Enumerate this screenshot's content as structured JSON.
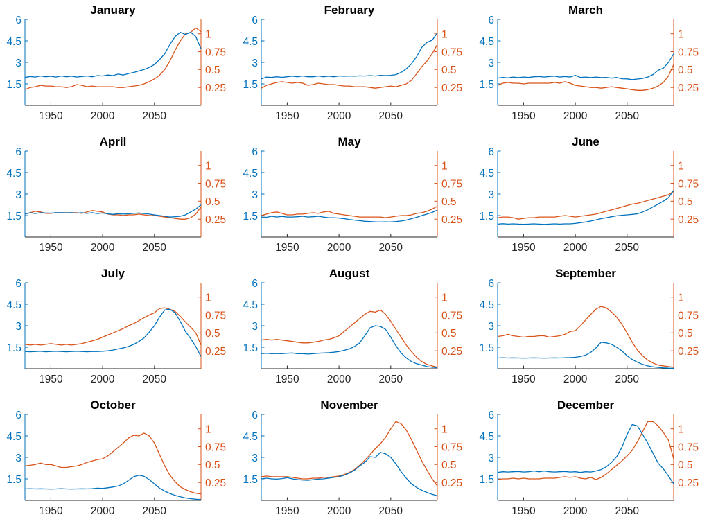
{
  "figure": {
    "background": "#ffffff",
    "grid_rows": 4,
    "grid_cols": 3
  },
  "colors": {
    "blue": "#0072BD",
    "orange": "#D95319",
    "axis_text": "#262626",
    "title_text": "#000000"
  },
  "chart_data": {
    "type": "line",
    "layout": "4x3 subplot grid, one subplot per month, two series per subplot (blue on left y-axis, orange on right y-axis)",
    "x": [
      1925,
      1930,
      1935,
      1940,
      1945,
      1950,
      1955,
      1960,
      1965,
      1970,
      1975,
      1980,
      1985,
      1990,
      1995,
      2000,
      2005,
      2010,
      2015,
      2020,
      2025,
      2030,
      2035,
      2040,
      2045,
      2050,
      2055,
      2060,
      2065,
      2070,
      2075,
      2080,
      2085,
      2090,
      2095
    ],
    "xlim": [
      1925,
      2095
    ],
    "x_ticks": [
      1950,
      2000,
      2050
    ],
    "left_axis": {
      "color": "#0072BD",
      "ticks": [
        1.5,
        3,
        4.5,
        6
      ],
      "lim": [
        0,
        6
      ]
    },
    "right_axis": {
      "color": "#D95319",
      "ticks": [
        0.25,
        0.5,
        0.75,
        1
      ],
      "lim": [
        0,
        1.2
      ]
    },
    "subplots": [
      {
        "title": "January",
        "left_values": [
          1.95,
          2.02,
          1.98,
          2.05,
          2.0,
          2.03,
          1.98,
          2.05,
          2.0,
          2.04,
          1.98,
          2.02,
          2.05,
          2.0,
          2.08,
          2.05,
          2.12,
          2.08,
          2.18,
          2.12,
          2.22,
          2.3,
          2.4,
          2.5,
          2.65,
          2.85,
          3.2,
          3.6,
          4.25,
          4.8,
          5.1,
          4.95,
          5.1,
          4.8,
          3.95
        ],
        "right_values": [
          0.22,
          0.25,
          0.26,
          0.28,
          0.27,
          0.27,
          0.26,
          0.26,
          0.25,
          0.26,
          0.29,
          0.28,
          0.26,
          0.27,
          0.26,
          0.26,
          0.26,
          0.26,
          0.25,
          0.25,
          0.26,
          0.27,
          0.28,
          0.3,
          0.33,
          0.37,
          0.42,
          0.5,
          0.62,
          0.77,
          0.9,
          1.0,
          1.02,
          1.08,
          1.03
        ]
      },
      {
        "title": "February",
        "left_values": [
          1.85,
          1.98,
          1.95,
          2.0,
          1.96,
          2.0,
          2.04,
          2.0,
          2.05,
          2.0,
          2.0,
          2.05,
          2.0,
          2.04,
          2.0,
          2.05,
          2.03,
          2.05,
          2.04,
          2.06,
          2.05,
          2.08,
          2.05,
          2.1,
          2.08,
          2.1,
          2.15,
          2.3,
          2.55,
          2.9,
          3.4,
          4.05,
          4.4,
          4.55,
          5.05
        ],
        "right_values": [
          0.24,
          0.28,
          0.3,
          0.32,
          0.33,
          0.32,
          0.31,
          0.32,
          0.31,
          0.28,
          0.29,
          0.31,
          0.3,
          0.29,
          0.29,
          0.28,
          0.27,
          0.27,
          0.26,
          0.26,
          0.26,
          0.25,
          0.24,
          0.25,
          0.26,
          0.27,
          0.26,
          0.28,
          0.3,
          0.35,
          0.44,
          0.54,
          0.62,
          0.72,
          0.85
        ]
      },
      {
        "title": "March",
        "left_values": [
          1.9,
          1.95,
          1.92,
          1.98,
          1.94,
          1.98,
          1.95,
          2.0,
          2.02,
          1.98,
          2.02,
          2.04,
          1.98,
          2.02,
          1.98,
          2.1,
          1.95,
          1.98,
          1.94,
          1.98,
          1.94,
          1.95,
          1.9,
          1.95,
          1.86,
          1.85,
          1.8,
          1.84,
          1.88,
          1.98,
          2.15,
          2.45,
          2.6,
          3.0,
          3.6
        ],
        "right_values": [
          0.28,
          0.31,
          0.32,
          0.31,
          0.31,
          0.3,
          0.31,
          0.31,
          0.31,
          0.31,
          0.31,
          0.32,
          0.31,
          0.33,
          0.31,
          0.28,
          0.27,
          0.26,
          0.25,
          0.25,
          0.24,
          0.25,
          0.26,
          0.25,
          0.24,
          0.23,
          0.22,
          0.21,
          0.21,
          0.22,
          0.24,
          0.27,
          0.32,
          0.41,
          0.57
        ]
      },
      {
        "title": "April",
        "left_values": [
          1.6,
          1.7,
          1.64,
          1.7,
          1.68,
          1.67,
          1.7,
          1.7,
          1.69,
          1.7,
          1.67,
          1.7,
          1.65,
          1.7,
          1.64,
          1.68,
          1.62,
          1.58,
          1.63,
          1.6,
          1.62,
          1.65,
          1.68,
          1.64,
          1.6,
          1.55,
          1.5,
          1.45,
          1.4,
          1.42,
          1.45,
          1.55,
          1.75,
          1.95,
          2.25
        ],
        "right_values": [
          0.32,
          0.34,
          0.36,
          0.35,
          0.33,
          0.33,
          0.34,
          0.34,
          0.34,
          0.34,
          0.34,
          0.33,
          0.35,
          0.37,
          0.36,
          0.35,
          0.32,
          0.31,
          0.31,
          0.3,
          0.31,
          0.31,
          0.32,
          0.31,
          0.3,
          0.3,
          0.29,
          0.28,
          0.27,
          0.26,
          0.25,
          0.25,
          0.27,
          0.32,
          0.42
        ]
      },
      {
        "title": "May",
        "left_values": [
          1.4,
          1.38,
          1.45,
          1.4,
          1.44,
          1.4,
          1.4,
          1.42,
          1.45,
          1.4,
          1.42,
          1.45,
          1.4,
          1.35,
          1.35,
          1.32,
          1.28,
          1.22,
          1.18,
          1.14,
          1.1,
          1.08,
          1.06,
          1.05,
          1.06,
          1.05,
          1.08,
          1.12,
          1.18,
          1.28,
          1.38,
          1.5,
          1.6,
          1.72,
          1.88
        ],
        "right_values": [
          0.3,
          0.32,
          0.34,
          0.35,
          0.33,
          0.31,
          0.31,
          0.32,
          0.32,
          0.33,
          0.34,
          0.33,
          0.35,
          0.36,
          0.33,
          0.32,
          0.31,
          0.3,
          0.29,
          0.28,
          0.28,
          0.28,
          0.28,
          0.28,
          0.27,
          0.28,
          0.29,
          0.3,
          0.3,
          0.31,
          0.33,
          0.34,
          0.36,
          0.39,
          0.43
        ]
      },
      {
        "title": "June",
        "left_values": [
          0.9,
          0.93,
          0.9,
          0.92,
          0.9,
          0.89,
          0.9,
          0.92,
          0.9,
          0.88,
          0.9,
          0.92,
          0.9,
          0.92,
          0.92,
          0.95,
          1.0,
          1.05,
          1.12,
          1.2,
          1.28,
          1.35,
          1.42,
          1.48,
          1.52,
          1.55,
          1.58,
          1.62,
          1.75,
          1.9,
          2.1,
          2.3,
          2.5,
          2.75,
          3.25
        ],
        "right_values": [
          0.27,
          0.28,
          0.28,
          0.27,
          0.25,
          0.26,
          0.27,
          0.27,
          0.28,
          0.28,
          0.28,
          0.28,
          0.29,
          0.3,
          0.29,
          0.28,
          0.29,
          0.3,
          0.31,
          0.32,
          0.34,
          0.36,
          0.38,
          0.4,
          0.42,
          0.44,
          0.46,
          0.47,
          0.49,
          0.51,
          0.53,
          0.55,
          0.57,
          0.59,
          0.64
        ]
      },
      {
        "title": "July",
        "left_values": [
          1.2,
          1.18,
          1.2,
          1.22,
          1.18,
          1.2,
          1.22,
          1.2,
          1.18,
          1.2,
          1.22,
          1.2,
          1.18,
          1.2,
          1.2,
          1.22,
          1.25,
          1.3,
          1.38,
          1.45,
          1.55,
          1.7,
          1.9,
          2.15,
          2.55,
          3.0,
          3.6,
          4.1,
          4.15,
          3.9,
          3.3,
          2.6,
          2.1,
          1.55,
          0.85
        ],
        "right_values": [
          0.34,
          0.33,
          0.34,
          0.33,
          0.34,
          0.35,
          0.34,
          0.33,
          0.34,
          0.33,
          0.34,
          0.35,
          0.37,
          0.39,
          0.41,
          0.44,
          0.47,
          0.5,
          0.53,
          0.56,
          0.6,
          0.63,
          0.67,
          0.71,
          0.75,
          0.78,
          0.84,
          0.85,
          0.83,
          0.8,
          0.73,
          0.65,
          0.58,
          0.5,
          0.33
        ]
      },
      {
        "title": "August",
        "left_values": [
          1.05,
          1.08,
          1.05,
          1.06,
          1.05,
          1.08,
          1.1,
          1.05,
          1.05,
          1.02,
          1.05,
          1.08,
          1.1,
          1.12,
          1.15,
          1.2,
          1.28,
          1.38,
          1.55,
          1.8,
          2.3,
          2.85,
          3.0,
          2.95,
          2.75,
          2.2,
          1.6,
          1.1,
          0.75,
          0.5,
          0.35,
          0.25,
          0.15,
          0.1,
          0.07
        ],
        "right_values": [
          0.4,
          0.41,
          0.4,
          0.41,
          0.4,
          0.39,
          0.38,
          0.37,
          0.36,
          0.36,
          0.37,
          0.38,
          0.4,
          0.41,
          0.43,
          0.46,
          0.52,
          0.58,
          0.64,
          0.7,
          0.76,
          0.8,
          0.79,
          0.82,
          0.76,
          0.66,
          0.55,
          0.44,
          0.33,
          0.24,
          0.16,
          0.1,
          0.06,
          0.04,
          0.02
        ]
      },
      {
        "title": "September",
        "left_values": [
          0.75,
          0.77,
          0.75,
          0.76,
          0.75,
          0.74,
          0.75,
          0.76,
          0.75,
          0.74,
          0.75,
          0.76,
          0.75,
          0.77,
          0.78,
          0.8,
          0.85,
          0.95,
          1.15,
          1.45,
          1.85,
          1.8,
          1.7,
          1.5,
          1.25,
          0.9,
          0.65,
          0.45,
          0.3,
          0.2,
          0.13,
          0.09,
          0.06,
          0.04,
          0.03
        ],
        "right_values": [
          0.45,
          0.46,
          0.48,
          0.46,
          0.45,
          0.44,
          0.45,
          0.45,
          0.46,
          0.46,
          0.44,
          0.45,
          0.46,
          0.48,
          0.52,
          0.53,
          0.6,
          0.68,
          0.76,
          0.83,
          0.87,
          0.85,
          0.79,
          0.72,
          0.62,
          0.5,
          0.37,
          0.26,
          0.18,
          0.12,
          0.08,
          0.05,
          0.04,
          0.03,
          0.02
        ]
      },
      {
        "title": "October",
        "left_values": [
          0.8,
          0.82,
          0.8,
          0.81,
          0.8,
          0.79,
          0.8,
          0.82,
          0.8,
          0.79,
          0.8,
          0.81,
          0.8,
          0.82,
          0.85,
          0.83,
          0.88,
          0.93,
          1.0,
          1.15,
          1.4,
          1.65,
          1.75,
          1.68,
          1.45,
          1.15,
          0.85,
          0.65,
          0.48,
          0.35,
          0.25,
          0.17,
          0.12,
          0.08,
          0.06
        ],
        "right_values": [
          0.48,
          0.49,
          0.5,
          0.52,
          0.5,
          0.5,
          0.48,
          0.46,
          0.46,
          0.47,
          0.48,
          0.5,
          0.53,
          0.55,
          0.57,
          0.58,
          0.62,
          0.68,
          0.74,
          0.8,
          0.87,
          0.91,
          0.9,
          0.94,
          0.9,
          0.8,
          0.64,
          0.48,
          0.35,
          0.26,
          0.19,
          0.15,
          0.12,
          0.1,
          0.09
        ]
      },
      {
        "title": "November",
        "left_values": [
          1.5,
          1.55,
          1.5,
          1.48,
          1.52,
          1.58,
          1.5,
          1.45,
          1.42,
          1.4,
          1.44,
          1.48,
          1.5,
          1.55,
          1.6,
          1.65,
          1.75,
          1.9,
          2.1,
          2.4,
          2.65,
          3.05,
          3.0,
          3.35,
          3.25,
          3.0,
          2.55,
          2.0,
          1.55,
          1.15,
          0.9,
          0.7,
          0.55,
          0.42,
          0.32
        ],
        "right_values": [
          0.33,
          0.34,
          0.33,
          0.33,
          0.33,
          0.33,
          0.32,
          0.31,
          0.3,
          0.3,
          0.31,
          0.31,
          0.32,
          0.32,
          0.33,
          0.34,
          0.36,
          0.39,
          0.43,
          0.49,
          0.56,
          0.64,
          0.72,
          0.79,
          0.88,
          1.0,
          1.1,
          1.07,
          0.98,
          0.85,
          0.7,
          0.55,
          0.42,
          0.3,
          0.2
        ]
      },
      {
        "title": "December",
        "left_values": [
          1.95,
          2.0,
          1.98,
          2.0,
          2.02,
          1.98,
          2.0,
          2.05,
          2.0,
          2.05,
          2.0,
          1.98,
          2.0,
          2.02,
          1.98,
          2.0,
          1.95,
          2.0,
          1.98,
          2.05,
          2.15,
          2.35,
          2.65,
          3.05,
          3.7,
          4.6,
          5.3,
          5.2,
          4.6,
          4.0,
          3.3,
          2.6,
          2.2,
          1.7,
          1.15
        ],
        "right_values": [
          0.29,
          0.3,
          0.3,
          0.31,
          0.3,
          0.31,
          0.3,
          0.3,
          0.3,
          0.31,
          0.31,
          0.31,
          0.32,
          0.33,
          0.32,
          0.33,
          0.31,
          0.3,
          0.32,
          0.29,
          0.32,
          0.37,
          0.43,
          0.49,
          0.55,
          0.62,
          0.7,
          0.82,
          0.96,
          1.1,
          1.1,
          1.04,
          0.95,
          0.84,
          0.58
        ]
      }
    ]
  }
}
